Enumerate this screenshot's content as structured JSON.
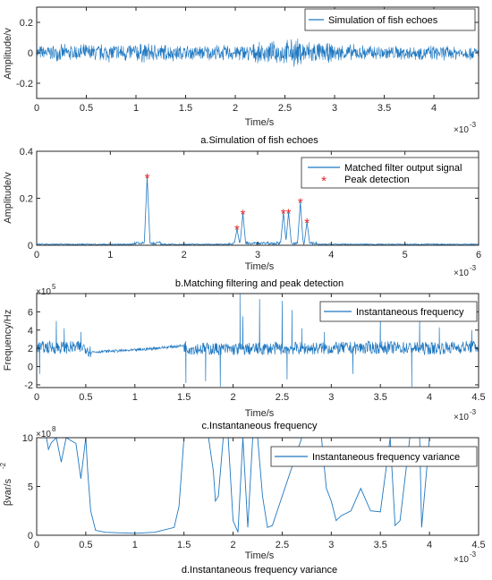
{
  "line_color": "#1f78c1",
  "marker_color": "#e8242a",
  "chart_data": [
    {
      "type": "line",
      "caption": "a.Simulation of fish echoes",
      "xlabel": "Time/s",
      "ylabel": "Amplitude/v",
      "x_exponent": "-3",
      "xlim": [
        0,
        4.45
      ],
      "ylim": [
        -0.3,
        0.3
      ],
      "xticks": [
        0,
        0.5,
        1,
        1.5,
        2,
        2.5,
        3,
        3.5,
        4
      ],
      "xtick_labels": [
        "0",
        "0.5",
        "1",
        "1.5",
        "2",
        "2.5",
        "3",
        "3.5",
        "4"
      ],
      "yticks": [
        -0.2,
        0,
        0.2
      ],
      "ytick_labels": [
        "-0.2",
        "0",
        "0.2"
      ],
      "legend_position": "top-right",
      "series": [
        {
          "name": "Simulation of fish echoes",
          "x": [
            0,
            0.5,
            1.0,
            1.2,
            1.5,
            2.0,
            2.3,
            2.5,
            2.6,
            2.8,
            3.0,
            3.3,
            3.6,
            4.0,
            4.45
          ],
          "envelope": [
            0.055,
            0.065,
            0.075,
            0.07,
            0.055,
            0.06,
            0.075,
            0.09,
            0.11,
            0.085,
            0.065,
            0.06,
            0.055,
            0.055,
            0.05
          ]
        }
      ]
    },
    {
      "type": "line",
      "caption": "b.Matching filtering and peak detection",
      "xlabel": "Time/s",
      "ylabel": "Amplitude/v",
      "x_exponent": "-3",
      "xlim": [
        0,
        6
      ],
      "ylim": [
        0,
        0.4
      ],
      "xticks": [
        0,
        1,
        2,
        3,
        4,
        5,
        6
      ],
      "xtick_labels": [
        "0",
        "1",
        "2",
        "3",
        "4",
        "5",
        "6"
      ],
      "yticks": [
        0,
        0.2,
        0.4
      ],
      "ytick_labels": [
        "0",
        "0.2",
        "0.4"
      ],
      "legend_position": "top-right",
      "series": [
        {
          "name": "Matched filter output signal",
          "peaks_x": [
            1.5,
            2.72,
            2.8,
            3.35,
            3.42,
            3.58,
            3.67
          ],
          "peaks_y": [
            0.29,
            0.07,
            0.135,
            0.14,
            0.14,
            0.185,
            0.1
          ]
        },
        {
          "name": "Peak detection",
          "x": [
            1.5,
            2.72,
            2.8,
            3.35,
            3.42,
            3.58,
            3.67
          ],
          "y": [
            0.29,
            0.07,
            0.135,
            0.14,
            0.14,
            0.185,
            0.1
          ]
        }
      ]
    },
    {
      "type": "line",
      "caption": "c.Instantaneous frequency",
      "xlabel": "Time/s",
      "ylabel": "Frequency/Hz",
      "x_exponent": "-3",
      "y_exponent": "5",
      "xlim": [
        0,
        4.5
      ],
      "ylim": [
        -2.3,
        8
      ],
      "xticks": [
        0,
        0.5,
        1,
        1.5,
        2,
        2.5,
        3,
        3.5,
        4,
        4.5
      ],
      "xtick_labels": [
        "0",
        "0.5",
        "1",
        "1.5",
        "2",
        "2.5",
        "3",
        "3.5",
        "4",
        "4.5"
      ],
      "yticks": [
        -2,
        0,
        2,
        4,
        6
      ],
      "ytick_labels": [
        "-2",
        "0",
        "2",
        "4",
        "6"
      ],
      "legend_position": "top-right",
      "series": [
        {
          "name": "Instantaneous frequency",
          "base_x": [
            0,
            0.5,
            0.55,
            1.0,
            1.5,
            1.55,
            2.0,
            2.5,
            3.0,
            3.5,
            4.0,
            4.5
          ],
          "base_y": [
            2.1,
            2.1,
            1.6,
            1.8,
            2.3,
            2.0,
            1.9,
            2.0,
            2.0,
            2.1,
            2.0,
            2.2
          ],
          "spikes_x": [
            0.03,
            0.2,
            0.28,
            0.45,
            1.52,
            1.72,
            1.87,
            2.07,
            2.1,
            2.27,
            2.5,
            2.55,
            2.6,
            2.7,
            2.93,
            3.22,
            3.5,
            3.82,
            3.9,
            4.1,
            4.43
          ],
          "spikes_y": [
            -0.8,
            5.0,
            4.2,
            3.8,
            -1.8,
            -1.6,
            -2.2,
            8.0,
            5.5,
            7.4,
            7.2,
            -1.4,
            6.2,
            4.2,
            3.8,
            -0.8,
            6.0,
            -2.2,
            5.2,
            4.3,
            4.0
          ]
        }
      ]
    },
    {
      "type": "line",
      "caption": "d.Instantaneous frequency variance",
      "xlabel": "Time/s",
      "ylabel": "βvar/s",
      "ylabel_superscript": "-2",
      "x_exponent": "-3",
      "y_exponent": "8",
      "xlim": [
        0,
        4.5
      ],
      "ylim": [
        0,
        10
      ],
      "xticks": [
        0,
        0.5,
        1,
        1.5,
        2,
        2.5,
        3,
        3.5,
        4,
        4.5
      ],
      "xtick_labels": [
        "0",
        "0.5",
        "1",
        "1.5",
        "2",
        "2.5",
        "3",
        "3.5",
        "4",
        "4.5"
      ],
      "yticks": [
        0,
        5,
        10
      ],
      "ytick_labels": [
        "0",
        "5",
        "10"
      ],
      "legend_position": "top-right",
      "series": [
        {
          "name": "Instantaneous frequency variance",
          "x": [
            0.1,
            0.12,
            0.15,
            0.2,
            0.25,
            0.3,
            0.4,
            0.45,
            0.5,
            0.52,
            0.55,
            0.6,
            0.7,
            1.0,
            1.2,
            1.4,
            1.45,
            1.5,
            1.55,
            1.6,
            1.75,
            1.8,
            1.82,
            1.85,
            1.9,
            1.95,
            2.0,
            2.05,
            2.1,
            2.15,
            2.2,
            2.25,
            2.3,
            2.35,
            2.4,
            2.7,
            2.75,
            2.8,
            2.9,
            2.95,
            3.0,
            3.05,
            3.1,
            3.2,
            3.3,
            3.4,
            3.5,
            3.6,
            3.65,
            3.7,
            3.8,
            3.9,
            3.92,
            4.0,
            4.1,
            4.3,
            4.4
          ],
          "y": [
            10,
            8.8,
            9.5,
            10,
            7.5,
            10,
            9.4,
            5.8,
            10,
            6.5,
            2.5,
            0.5,
            0.3,
            0.2,
            0.3,
            0.8,
            3.0,
            10,
            10,
            10,
            10,
            6.5,
            3.5,
            4.0,
            10,
            10,
            1.5,
            0.3,
            10,
            0.8,
            10,
            10,
            4.0,
            0.8,
            1.0,
            10,
            10,
            10,
            10,
            4.8,
            3.5,
            1.5,
            2.0,
            2.5,
            4.8,
            2.5,
            2.4,
            10,
            1.0,
            1.5,
            10,
            10,
            0.8,
            10,
            10,
            10,
            10
          ]
        }
      ]
    }
  ]
}
